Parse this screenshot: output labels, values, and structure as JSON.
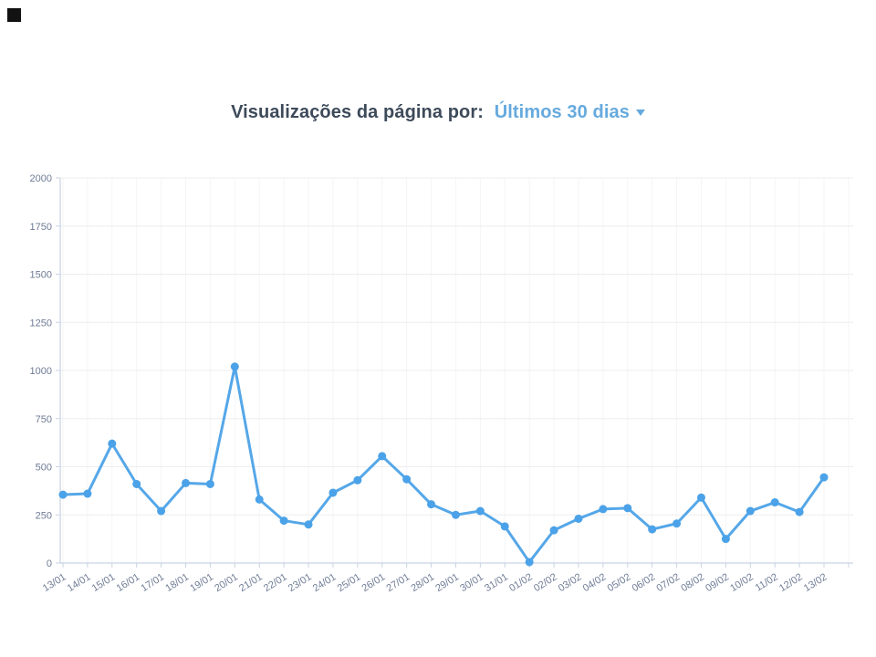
{
  "title": {
    "prefix": "Visualizações da página por:",
    "selector_label": "Últimos 30 dias"
  },
  "chart_data": {
    "type": "line",
    "title": "Visualizações da página por: Últimos 30 dias",
    "categories": [
      "13/01",
      "14/01",
      "15/01",
      "16/01",
      "17/01",
      "18/01",
      "19/01",
      "20/01",
      "21/01",
      "22/01",
      "23/01",
      "24/01",
      "25/01",
      "26/01",
      "27/01",
      "28/01",
      "29/01",
      "30/01",
      "31/01",
      "01/02",
      "02/02",
      "03/02",
      "04/02",
      "05/02",
      "06/02",
      "07/02",
      "08/02",
      "09/02",
      "10/02",
      "11/02",
      "12/02",
      "13/02"
    ],
    "series": [
      {
        "name": "Visualizações da página",
        "values": [
          355,
          360,
          620,
          410,
          270,
          415,
          410,
          1020,
          330,
          220,
          200,
          365,
          430,
          555,
          435,
          305,
          250,
          270,
          190,
          5,
          170,
          230,
          280,
          285,
          175,
          205,
          340,
          125,
          270,
          315,
          265,
          445
        ]
      }
    ],
    "xlabel": "",
    "ylabel": "",
    "ylim": [
      0,
      2000
    ],
    "yticks": [
      0,
      250,
      500,
      750,
      1000,
      1250,
      1500,
      1750,
      2000
    ],
    "x_tick_rotation": -32,
    "grid": "horizontal light, vertical very faint",
    "legend": "none",
    "colors": {
      "line": "#55a7e8",
      "marker": "#4ba2e8",
      "axis": "#c9d3e3",
      "tick_label": "#6e7b95",
      "grid_h": "#ededed",
      "grid_v": "#f4f5f7",
      "title_text": "#3d4a5a",
      "title_accent": "#66aadd"
    }
  }
}
